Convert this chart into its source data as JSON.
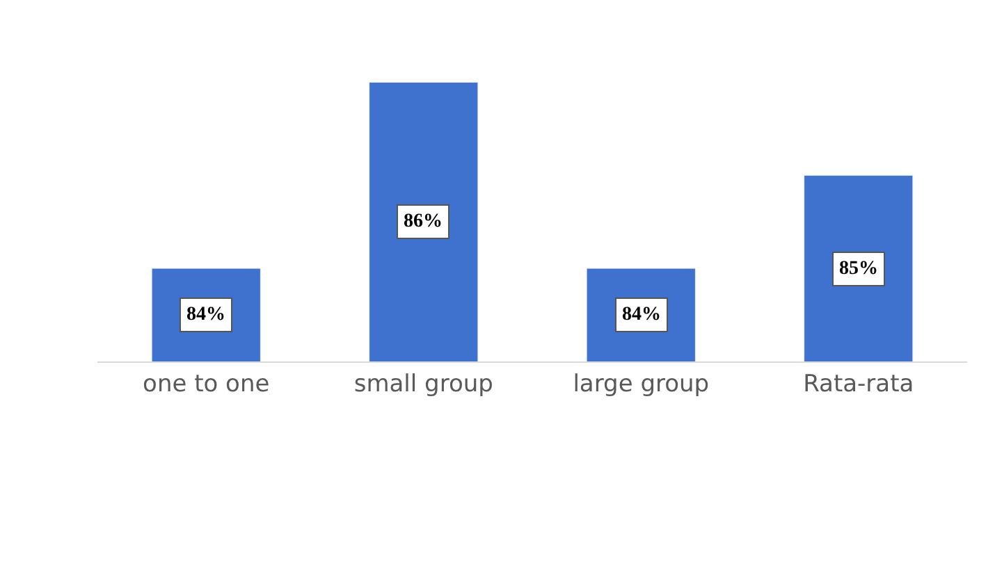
{
  "chart_data": {
    "type": "bar",
    "categories": [
      "one to one",
      "small group",
      "large group",
      "Rata-rata"
    ],
    "values": [
      84,
      86,
      84,
      85
    ],
    "value_labels": [
      "84%",
      "86%",
      "84%",
      "85%"
    ],
    "color": "#3f72cf",
    "legend": false
  }
}
